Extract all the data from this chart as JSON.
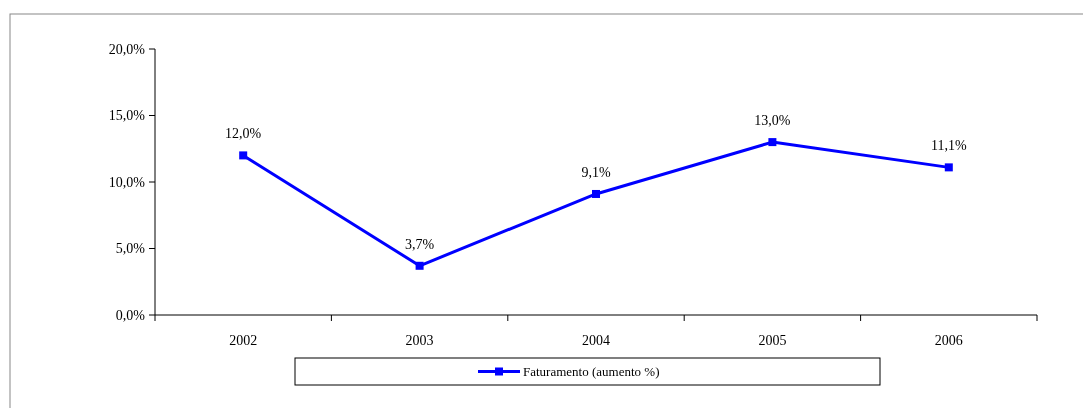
{
  "chart_data": {
    "type": "line",
    "categories": [
      "2002",
      "2003",
      "2004",
      "2005",
      "2006"
    ],
    "series": [
      {
        "name": "Faturamento (aumento %)",
        "color": "#0000ff",
        "values": [
          12.0,
          3.7,
          9.1,
          13.0,
          11.1
        ],
        "value_labels": [
          "12,0%",
          "3,7%",
          "9,1%",
          "13,0%",
          "11,1%"
        ]
      }
    ],
    "ylim": [
      0,
      20
    ],
    "yticks": [
      {
        "value": 0,
        "label": "0,0%"
      },
      {
        "value": 5,
        "label": "5,0%"
      },
      {
        "value": 10,
        "label": "10,0%"
      },
      {
        "value": 15,
        "label": "15,0%"
      },
      {
        "value": 20,
        "label": "20,0%"
      }
    ],
    "marker": "square",
    "legend": "bottom",
    "grid": false
  }
}
